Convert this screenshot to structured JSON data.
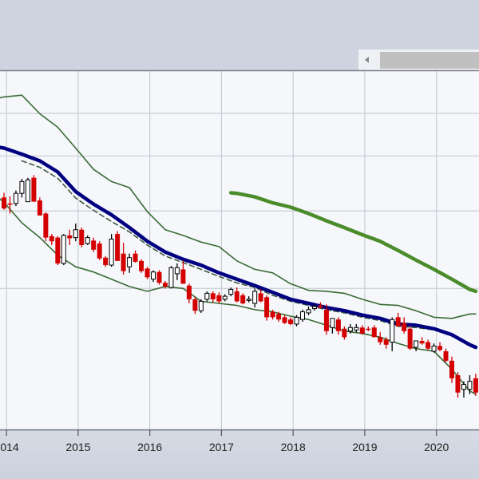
{
  "chart_data": {
    "type": "candlestick",
    "title": "",
    "xlabel": "",
    "ylabel": "",
    "y_scale": "log",
    "ylim": [
      0.956,
      6.24
    ],
    "y_gridlines": [
      2,
      3,
      4,
      5
    ],
    "x_gridlines": true,
    "x_tick_labels": [
      "2014",
      "2015",
      "2016",
      "2017",
      "2018",
      "2019",
      "2020"
    ],
    "colors": {
      "up_fill": "#ffffff",
      "up_stroke": "#000000",
      "down": "#d40000",
      "ma_short": "#000080",
      "ma_dashed": "#3d5a3d",
      "bands": "#3a6b35",
      "ma_long": "#4a8c2a",
      "plot_bg": "#f5f7fb",
      "grid": "#c9ccd4"
    },
    "candles": {
      "fields": [
        "date",
        "open",
        "high",
        "low",
        "close"
      ],
      "rows": [
        [
          "2013-12",
          3.22,
          3.3,
          3.02,
          3.04
        ],
        [
          "2014-01",
          3.12,
          3.24,
          2.96,
          3.11
        ],
        [
          "2014-02",
          3.12,
          3.34,
          3.08,
          3.29
        ],
        [
          "2014-03",
          3.29,
          3.55,
          3.22,
          3.5
        ],
        [
          "2014-04",
          3.15,
          3.57,
          3.15,
          3.53
        ],
        [
          "2014-05",
          3.57,
          3.62,
          3.15,
          3.15
        ],
        [
          "2014-06",
          3.17,
          3.22,
          2.93,
          2.93
        ],
        [
          "2014-07",
          2.96,
          2.98,
          2.56,
          2.61
        ],
        [
          "2014-08",
          2.63,
          2.66,
          2.51,
          2.56
        ],
        [
          "2014-09",
          2.61,
          2.63,
          2.26,
          2.28
        ],
        [
          "2014-10",
          2.28,
          2.66,
          2.26,
          2.64
        ],
        [
          "2014-11",
          2.64,
          2.72,
          2.51,
          2.6
        ],
        [
          "2014-12",
          2.61,
          2.81,
          2.56,
          2.72
        ],
        [
          "2015-01",
          2.72,
          2.75,
          2.48,
          2.51
        ],
        [
          "2015-02",
          2.53,
          2.64,
          2.51,
          2.61
        ],
        [
          "2015-03",
          2.57,
          2.61,
          2.42,
          2.45
        ],
        [
          "2015-04",
          2.53,
          2.56,
          2.32,
          2.34
        ],
        [
          "2015-05",
          2.35,
          2.37,
          2.24,
          2.26
        ],
        [
          "2015-06",
          2.26,
          2.66,
          2.24,
          2.59
        ],
        [
          "2015-07",
          2.66,
          2.7,
          2.31,
          2.31
        ],
        [
          "2015-08",
          2.4,
          2.54,
          2.15,
          2.19
        ],
        [
          "2015-09",
          2.24,
          2.4,
          2.17,
          2.35
        ],
        [
          "2015-10",
          2.4,
          2.44,
          2.29,
          2.3
        ],
        [
          "2015-11",
          2.31,
          2.33,
          2.17,
          2.19
        ],
        [
          "2015-12",
          2.22,
          2.24,
          2.1,
          2.12
        ],
        [
          "2016-01",
          2.1,
          2.2,
          2.07,
          2.18
        ],
        [
          "2016-02",
          2.18,
          2.2,
          2.04,
          2.06
        ],
        [
          "2016-03",
          2.06,
          2.08,
          2.0,
          2.02
        ],
        [
          "2016-04",
          2.01,
          2.25,
          2.0,
          2.23
        ],
        [
          "2016-05",
          2.16,
          2.28,
          2.09,
          2.23
        ],
        [
          "2016-06",
          2.21,
          2.31,
          2.05,
          2.05
        ],
        [
          "2016-07",
          2.03,
          2.05,
          1.85,
          1.89
        ],
        [
          "2016-08",
          1.89,
          1.91,
          1.75,
          1.78
        ],
        [
          "2016-09",
          1.78,
          1.89,
          1.76,
          1.87
        ],
        [
          "2016-10",
          1.89,
          1.97,
          1.87,
          1.95
        ],
        [
          "2016-11",
          1.95,
          1.97,
          1.86,
          1.89
        ],
        [
          "2016-12",
          1.93,
          1.96,
          1.85,
          1.87
        ],
        [
          "2017-01",
          1.89,
          1.94,
          1.87,
          1.92
        ],
        [
          "2017-02",
          1.94,
          2.01,
          1.92,
          1.99
        ],
        [
          "2017-03",
          1.97,
          2.01,
          1.86,
          1.87
        ],
        [
          "2017-04",
          1.93,
          1.95,
          1.84,
          1.85
        ],
        [
          "2017-05",
          1.89,
          1.92,
          1.86,
          1.89
        ],
        [
          "2017-06",
          1.85,
          2.0,
          1.81,
          1.97
        ],
        [
          "2017-07",
          1.95,
          1.99,
          1.86,
          1.87
        ],
        [
          "2017-08",
          1.91,
          1.93,
          1.69,
          1.72
        ],
        [
          "2017-09",
          1.77,
          1.79,
          1.7,
          1.72
        ],
        [
          "2017-10",
          1.75,
          1.77,
          1.68,
          1.7
        ],
        [
          "2017-11",
          1.72,
          1.74,
          1.66,
          1.67
        ],
        [
          "2017-12",
          1.7,
          1.72,
          1.65,
          1.66
        ],
        [
          "2018-01",
          1.66,
          1.74,
          1.64,
          1.72
        ],
        [
          "2018-02",
          1.7,
          1.79,
          1.68,
          1.77
        ],
        [
          "2018-03",
          1.76,
          1.82,
          1.74,
          1.79
        ],
        [
          "2018-04",
          1.8,
          1.84,
          1.78,
          1.82
        ],
        [
          "2018-05",
          1.83,
          1.86,
          1.8,
          1.81
        ],
        [
          "2018-06",
          1.79,
          1.84,
          1.57,
          1.6
        ],
        [
          "2018-07",
          1.63,
          1.7,
          1.58,
          1.71
        ],
        [
          "2018-08",
          1.7,
          1.72,
          1.57,
          1.6
        ],
        [
          "2018-09",
          1.62,
          1.64,
          1.53,
          1.55
        ],
        [
          "2018-10",
          1.6,
          1.66,
          1.58,
          1.63
        ],
        [
          "2018-11",
          1.61,
          1.66,
          1.59,
          1.63
        ],
        [
          "2018-12",
          1.63,
          1.65,
          1.57,
          1.58
        ],
        [
          "2019-01",
          1.62,
          1.64,
          1.6,
          1.61
        ],
        [
          "2019-02",
          1.63,
          1.65,
          1.55,
          1.55
        ],
        [
          "2019-03",
          1.55,
          1.59,
          1.49,
          1.51
        ],
        [
          "2019-04",
          1.53,
          1.55,
          1.46,
          1.49
        ],
        [
          "2019-05",
          1.51,
          1.72,
          1.44,
          1.7
        ],
        [
          "2019-06",
          1.72,
          1.76,
          1.64,
          1.64
        ],
        [
          "2019-07",
          1.67,
          1.72,
          1.58,
          1.6
        ],
        [
          "2019-08",
          1.62,
          1.64,
          1.45,
          1.46
        ],
        [
          "2019-09",
          1.47,
          1.52,
          1.44,
          1.52
        ],
        [
          "2019-10",
          1.52,
          1.55,
          1.49,
          1.5
        ],
        [
          "2019-11",
          1.51,
          1.53,
          1.45,
          1.46
        ],
        [
          "2019-12",
          1.44,
          1.5,
          1.43,
          1.48
        ],
        [
          "2020-01",
          1.48,
          1.51,
          1.44,
          1.45
        ],
        [
          "2020-02",
          1.44,
          1.46,
          1.36,
          1.37
        ],
        [
          "2020-03",
          1.37,
          1.4,
          1.22,
          1.25
        ],
        [
          "2020-04",
          1.27,
          1.29,
          1.13,
          1.16
        ],
        [
          "2020-05",
          1.18,
          1.23,
          1.13,
          1.21
        ],
        [
          "2020-06",
          1.18,
          1.27,
          1.15,
          1.23
        ],
        [
          "2020-07",
          1.25,
          1.28,
          1.14,
          1.16
        ]
      ]
    },
    "lines": [
      {
        "id": "upper-band",
        "style": "bands",
        "points": [
          [
            "2013-11",
            5.41
          ],
          [
            "2013-12",
            5.45
          ],
          [
            "2014-03",
            5.5
          ],
          [
            "2014-06",
            4.99
          ],
          [
            "2014-09",
            4.65
          ],
          [
            "2014-12",
            4.17
          ],
          [
            "2015-03",
            3.73
          ],
          [
            "2015-06",
            3.5
          ],
          [
            "2015-09",
            3.39
          ],
          [
            "2015-12",
            2.99
          ],
          [
            "2016-03",
            2.72
          ],
          [
            "2016-06",
            2.64
          ],
          [
            "2016-09",
            2.55
          ],
          [
            "2016-12",
            2.49
          ],
          [
            "2017-03",
            2.31
          ],
          [
            "2017-06",
            2.21
          ],
          [
            "2017-09",
            2.17
          ],
          [
            "2017-12",
            2.05
          ],
          [
            "2018-03",
            1.98
          ],
          [
            "2018-06",
            1.97
          ],
          [
            "2018-09",
            1.95
          ],
          [
            "2018-12",
            1.89
          ],
          [
            "2019-03",
            1.84
          ],
          [
            "2019-06",
            1.83
          ],
          [
            "2019-09",
            1.78
          ],
          [
            "2019-12",
            1.72
          ],
          [
            "2020-03",
            1.71
          ],
          [
            "2020-06",
            1.75
          ],
          [
            "2020-07",
            1.75
          ]
        ]
      },
      {
        "id": "lower-band",
        "style": "bands",
        "points": [
          [
            "2013-11",
            3.22
          ],
          [
            "2013-12",
            3.14
          ],
          [
            "2014-03",
            2.82
          ],
          [
            "2014-06",
            2.61
          ],
          [
            "2014-09",
            2.38
          ],
          [
            "2014-12",
            2.24
          ],
          [
            "2015-03",
            2.18
          ],
          [
            "2015-06",
            2.1
          ],
          [
            "2015-09",
            2.02
          ],
          [
            "2015-12",
            1.97
          ],
          [
            "2016-03",
            2.02
          ],
          [
            "2016-06",
            2.0
          ],
          [
            "2016-09",
            1.87
          ],
          [
            "2016-12",
            1.85
          ],
          [
            "2017-03",
            1.83
          ],
          [
            "2017-06",
            1.79
          ],
          [
            "2017-09",
            1.77
          ],
          [
            "2017-12",
            1.73
          ],
          [
            "2018-03",
            1.7
          ],
          [
            "2018-06",
            1.65
          ],
          [
            "2018-09",
            1.6
          ],
          [
            "2018-12",
            1.58
          ],
          [
            "2019-03",
            1.55
          ],
          [
            "2019-06",
            1.5
          ],
          [
            "2019-09",
            1.46
          ],
          [
            "2019-12",
            1.44
          ],
          [
            "2020-03",
            1.31
          ],
          [
            "2020-06",
            1.17
          ],
          [
            "2020-07",
            1.15
          ]
        ]
      },
      {
        "id": "dashed-ma",
        "style": "ma_dashed",
        "points": [
          [
            "2014-03",
            3.9
          ],
          [
            "2014-06",
            3.77
          ],
          [
            "2014-09",
            3.56
          ],
          [
            "2014-12",
            3.21
          ],
          [
            "2015-03",
            3.01
          ],
          [
            "2015-06",
            2.84
          ],
          [
            "2015-09",
            2.69
          ],
          [
            "2015-12",
            2.51
          ],
          [
            "2016-03",
            2.37
          ],
          [
            "2016-06",
            2.29
          ],
          [
            "2016-09",
            2.21
          ],
          [
            "2016-12",
            2.13
          ],
          [
            "2017-03",
            2.06
          ],
          [
            "2017-06",
            2.01
          ],
          [
            "2017-09",
            1.93
          ],
          [
            "2017-12",
            1.87
          ],
          [
            "2018-03",
            1.83
          ],
          [
            "2018-06",
            1.79
          ],
          [
            "2018-09",
            1.76
          ],
          [
            "2018-12",
            1.72
          ],
          [
            "2019-03",
            1.69
          ],
          [
            "2019-06",
            1.64
          ],
          [
            "2019-09",
            1.63
          ],
          [
            "2019-12",
            1.61
          ],
          [
            "2020-03",
            1.56
          ],
          [
            "2020-06",
            1.48
          ],
          [
            "2020-07",
            1.46
          ]
        ]
      },
      {
        "id": "blue-ma",
        "style": "ma_short",
        "points": [
          [
            "2013-11",
            4.19
          ],
          [
            "2013-12",
            4.17
          ],
          [
            "2014-03",
            4.04
          ],
          [
            "2014-06",
            3.9
          ],
          [
            "2014-09",
            3.68
          ],
          [
            "2014-12",
            3.32
          ],
          [
            "2015-03",
            3.11
          ],
          [
            "2015-06",
            2.94
          ],
          [
            "2015-09",
            2.75
          ],
          [
            "2015-12",
            2.56
          ],
          [
            "2016-03",
            2.42
          ],
          [
            "2016-06",
            2.33
          ],
          [
            "2016-09",
            2.26
          ],
          [
            "2016-12",
            2.17
          ],
          [
            "2017-03",
            2.1
          ],
          [
            "2017-06",
            2.03
          ],
          [
            "2017-09",
            1.96
          ],
          [
            "2017-12",
            1.89
          ],
          [
            "2018-03",
            1.85
          ],
          [
            "2018-06",
            1.81
          ],
          [
            "2018-09",
            1.78
          ],
          [
            "2018-12",
            1.74
          ],
          [
            "2019-03",
            1.71
          ],
          [
            "2019-06",
            1.66
          ],
          [
            "2019-09",
            1.65
          ],
          [
            "2019-12",
            1.62
          ],
          [
            "2020-03",
            1.57
          ],
          [
            "2020-06",
            1.49
          ],
          [
            "2020-07",
            1.47
          ]
        ]
      },
      {
        "id": "green-ma",
        "style": "ma_long",
        "points": [
          [
            "2017-02",
            3.3
          ],
          [
            "2017-03",
            3.29
          ],
          [
            "2017-06",
            3.23
          ],
          [
            "2017-09",
            3.13
          ],
          [
            "2017-12",
            3.06
          ],
          [
            "2018-03",
            2.96
          ],
          [
            "2018-06",
            2.85
          ],
          [
            "2018-09",
            2.75
          ],
          [
            "2018-12",
            2.65
          ],
          [
            "2019-03",
            2.56
          ],
          [
            "2019-06",
            2.44
          ],
          [
            "2019-09",
            2.32
          ],
          [
            "2019-12",
            2.21
          ],
          [
            "2020-03",
            2.1
          ],
          [
            "2020-06",
            1.99
          ],
          [
            "2020-07",
            1.97
          ]
        ]
      }
    ]
  }
}
